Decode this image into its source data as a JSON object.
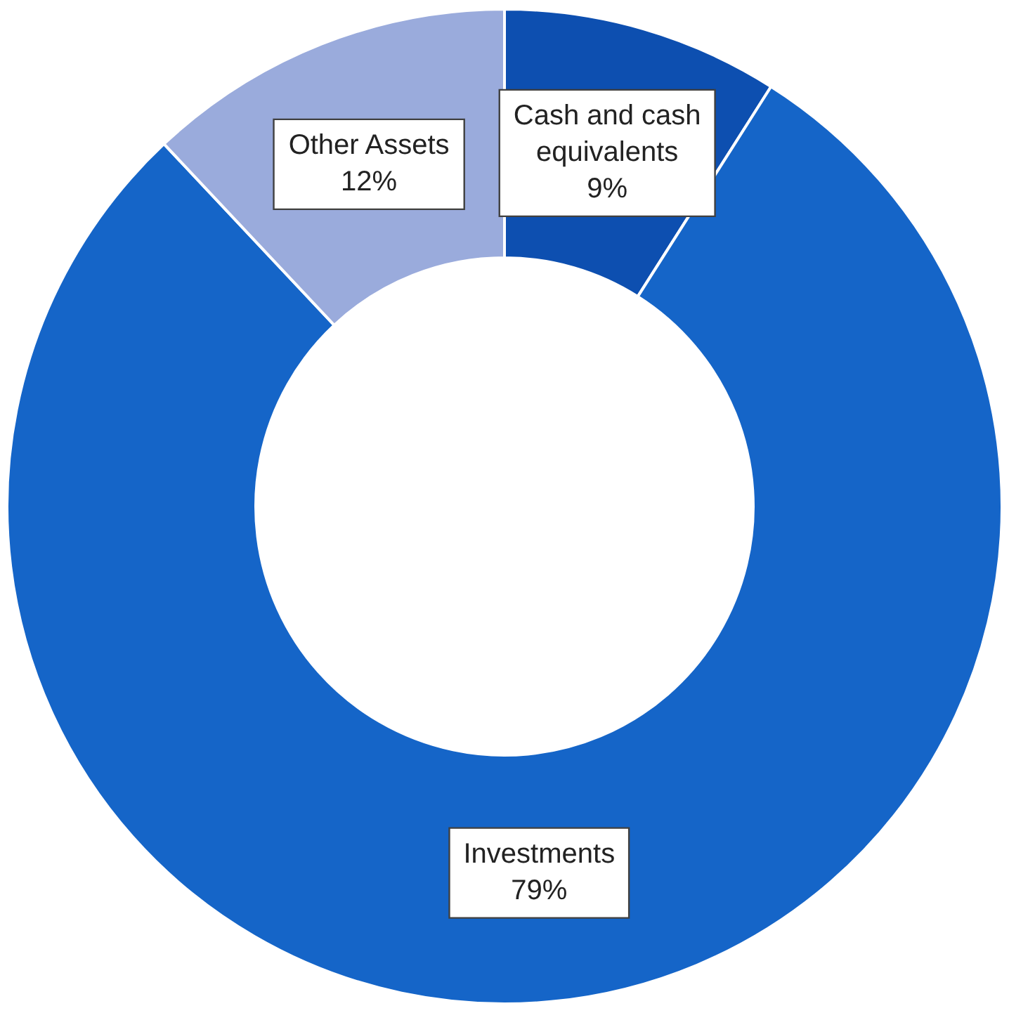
{
  "chart_data": {
    "type": "donut",
    "categories": [
      "Cash and cash equivalents",
      "Investments",
      "Other Assets"
    ],
    "values": [
      9,
      79,
      12
    ],
    "colors": [
      "#0d4fb0",
      "#1565c8",
      "#9aabdc"
    ],
    "value_labels": [
      "9%",
      "79%",
      "12%"
    ],
    "legend": false
  }
}
